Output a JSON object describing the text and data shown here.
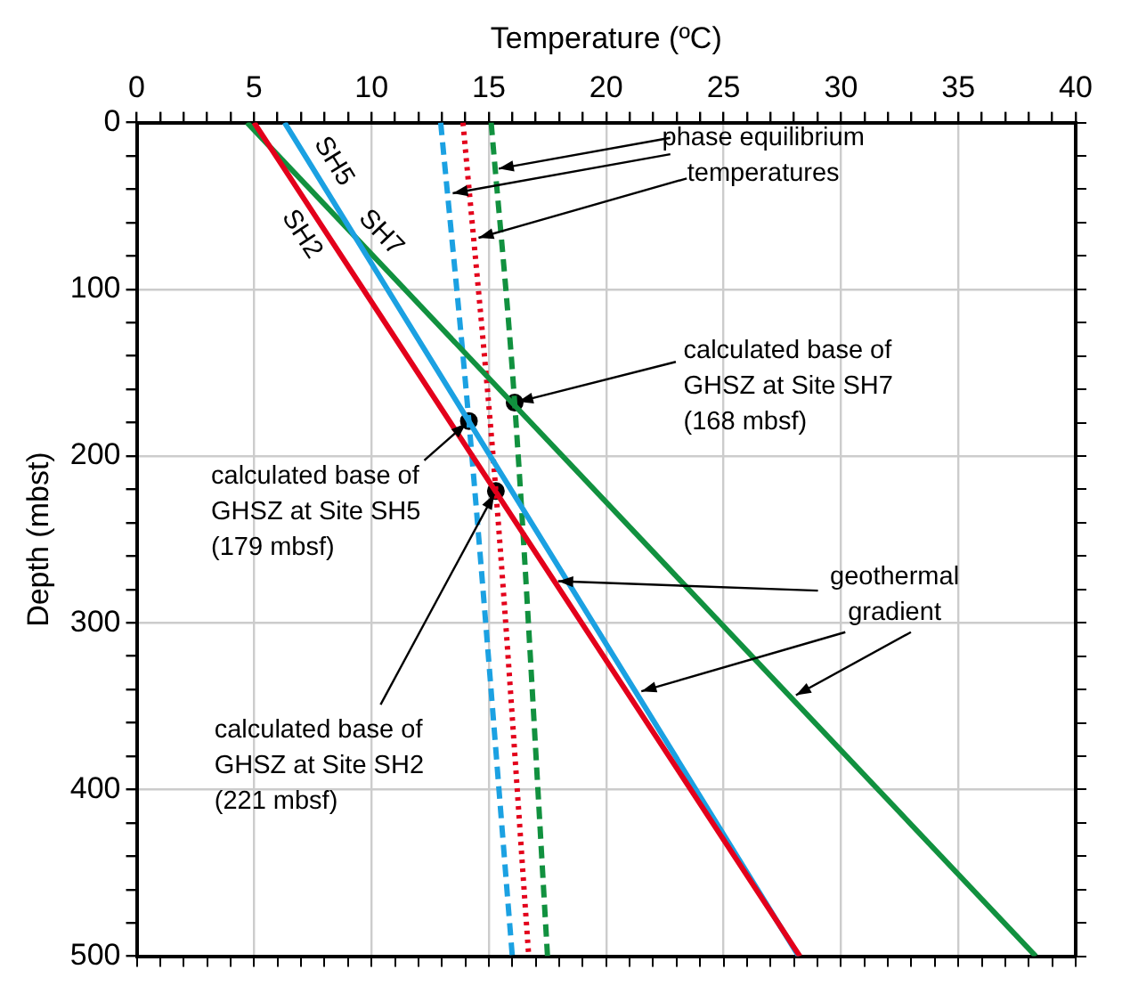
{
  "chart_data": {
    "type": "line",
    "xlabel": "Temperature (ºC)",
    "ylabel": "Depth (mbst)",
    "xlim": [
      0,
      40
    ],
    "ylim": [
      500,
      0
    ],
    "xticks": [
      0,
      {
        "value": 1,
        "label": null
      },
      {
        "value": 2,
        "label": null
      },
      {
        "value": 3,
        "label": null
      },
      {
        "value": 4,
        "label": null
      },
      5,
      {
        "value": 6,
        "label": null
      },
      {
        "value": 7,
        "label": null
      },
      {
        "value": 8,
        "label": null
      },
      {
        "value": 9,
        "label": null
      },
      10,
      {
        "value": 11,
        "label": null
      },
      {
        "value": 12,
        "label": null
      },
      {
        "value": 13,
        "label": null
      },
      {
        "value": 14,
        "label": null
      },
      15,
      {
        "value": 16,
        "label": null
      },
      {
        "value": 17,
        "label": null
      },
      {
        "value": 18,
        "label": null
      },
      {
        "value": 19,
        "label": null
      },
      20,
      {
        "value": 21,
        "label": null
      },
      {
        "value": 22,
        "label": null
      },
      {
        "value": 23,
        "label": null
      },
      {
        "value": 24,
        "label": null
      },
      25,
      {
        "value": 26,
        "label": null
      },
      {
        "value": 27,
        "label": null
      },
      {
        "value": 28,
        "label": null
      },
      {
        "value": 29,
        "label": null
      },
      30,
      {
        "value": 31,
        "label": null
      },
      {
        "value": 32,
        "label": null
      },
      {
        "value": 33,
        "label": null
      },
      {
        "value": 34,
        "label": null
      },
      35,
      {
        "value": 36,
        "label": null
      },
      {
        "value": 37,
        "label": null
      },
      {
        "value": 38,
        "label": null
      },
      {
        "value": 39,
        "label": null
      },
      40
    ],
    "yticks": [
      0,
      {
        "value": 20,
        "label": null
      },
      {
        "value": 40,
        "label": null
      },
      {
        "value": 60,
        "label": null
      },
      {
        "value": 80,
        "label": null
      },
      100,
      {
        "value": 120,
        "label": null
      },
      {
        "value": 140,
        "label": null
      },
      {
        "value": 160,
        "label": null
      },
      {
        "value": 180,
        "label": null
      },
      200,
      {
        "value": 220,
        "label": null
      },
      {
        "value": 240,
        "label": null
      },
      {
        "value": 260,
        "label": null
      },
      {
        "value": 280,
        "label": null
      },
      300,
      {
        "value": 320,
        "label": null
      },
      {
        "value": 340,
        "label": null
      },
      {
        "value": 360,
        "label": null
      },
      {
        "value": 380,
        "label": null
      },
      400,
      {
        "value": 420,
        "label": null
      },
      {
        "value": 440,
        "label": null
      },
      {
        "value": 460,
        "label": null
      },
      {
        "value": 480,
        "label": null
      },
      500
    ],
    "grid": true,
    "legend": false,
    "series": [
      {
        "name": "SH2",
        "color": "#e3001b",
        "x": [
          5,
          28.25
        ],
        "values": [
          0,
          500
        ],
        "line_style": "solid"
      },
      {
        "name": "SH5",
        "color": "#1ba1e2",
        "x": [
          6.3,
          28.2
        ],
        "values": [
          0,
          500
        ],
        "line_style": "solid"
      },
      {
        "name": "SH7",
        "color": "#11913f",
        "x": [
          4.7,
          38.3
        ],
        "values": [
          0,
          500
        ],
        "line_style": "solid"
      },
      {
        "color": "#1ba1e2",
        "x": [
          12.95,
          14.15,
          16.0
        ],
        "values": [
          0,
          179,
          500
        ],
        "line_style": "dashed"
      },
      {
        "color": "#e3001b",
        "x": [
          13.9,
          15.3,
          16.7
        ],
        "values": [
          0,
          221,
          500
        ],
        "line_style": "dotted"
      },
      {
        "color": "#11913f",
        "x": [
          15.1,
          16.1,
          17.5
        ],
        "values": [
          0,
          168,
          500
        ],
        "line_style": "dashed"
      },
      {
        "type": "scatter",
        "color": "#000000",
        "x": [
          16.1,
          14.15,
          15.3
        ],
        "values": [
          168,
          179,
          221
        ],
        "marker": "circle"
      }
    ],
    "annotations": [
      {
        "text": "phase equilibrium temperatures",
        "x": 15.27,
        "y": 28
      },
      {
        "text": "calculated base of GHSZ at Site SH7 (168 mbsf)",
        "x": 16.1,
        "y": 168
      },
      {
        "text": "calculated base of GHSZ at Site SH5 (179 mbsf)",
        "x": 14.15,
        "y": 179
      },
      {
        "text": "calculated base of GHSZ at Site SH2 (221 mbsf)",
        "x": 15.3,
        "y": 221
      },
      {
        "text": "geothermal gradient",
        "x": 17.8,
        "y": 275
      }
    ]
  }
}
